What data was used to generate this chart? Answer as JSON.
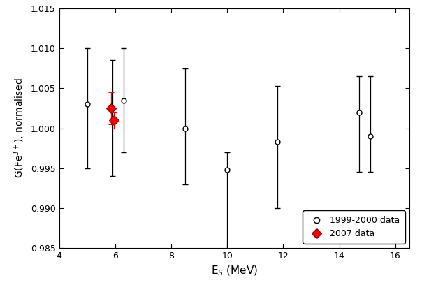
{
  "black_x": [
    5.0,
    5.9,
    6.3,
    8.5,
    10.0,
    11.8,
    14.7,
    15.1
  ],
  "black_y": [
    1.003,
    1.001,
    1.0035,
    1.0,
    0.9948,
    0.9983,
    1.002,
    0.999
  ],
  "black_yerr_lo": [
    0.008,
    0.007,
    0.0065,
    0.007,
    0.0128,
    0.0083,
    0.0075,
    0.0045
  ],
  "black_yerr_hi": [
    0.007,
    0.0075,
    0.0065,
    0.0075,
    0.0022,
    0.007,
    0.0045,
    0.0075
  ],
  "red_x": [
    5.85,
    5.95
  ],
  "red_y": [
    1.0025,
    1.001
  ],
  "red_yerr_lo": [
    0.002,
    0.001
  ],
  "red_yerr_hi": [
    0.002,
    0.001
  ],
  "xlim": [
    4,
    16.5
  ],
  "ylim": [
    0.985,
    1.015
  ],
  "yticks": [
    0.985,
    0.99,
    0.995,
    1.0,
    1.005,
    1.01,
    1.015
  ],
  "xticks": [
    4,
    6,
    8,
    10,
    12,
    14,
    16
  ],
  "xlabel": "E$_S$ (MeV)",
  "ylabel": "G(Fe$^{3+}$), normalised",
  "legend_labels": [
    "1999-2000 data",
    "2007 data"
  ],
  "bg_color": "#ffffff"
}
